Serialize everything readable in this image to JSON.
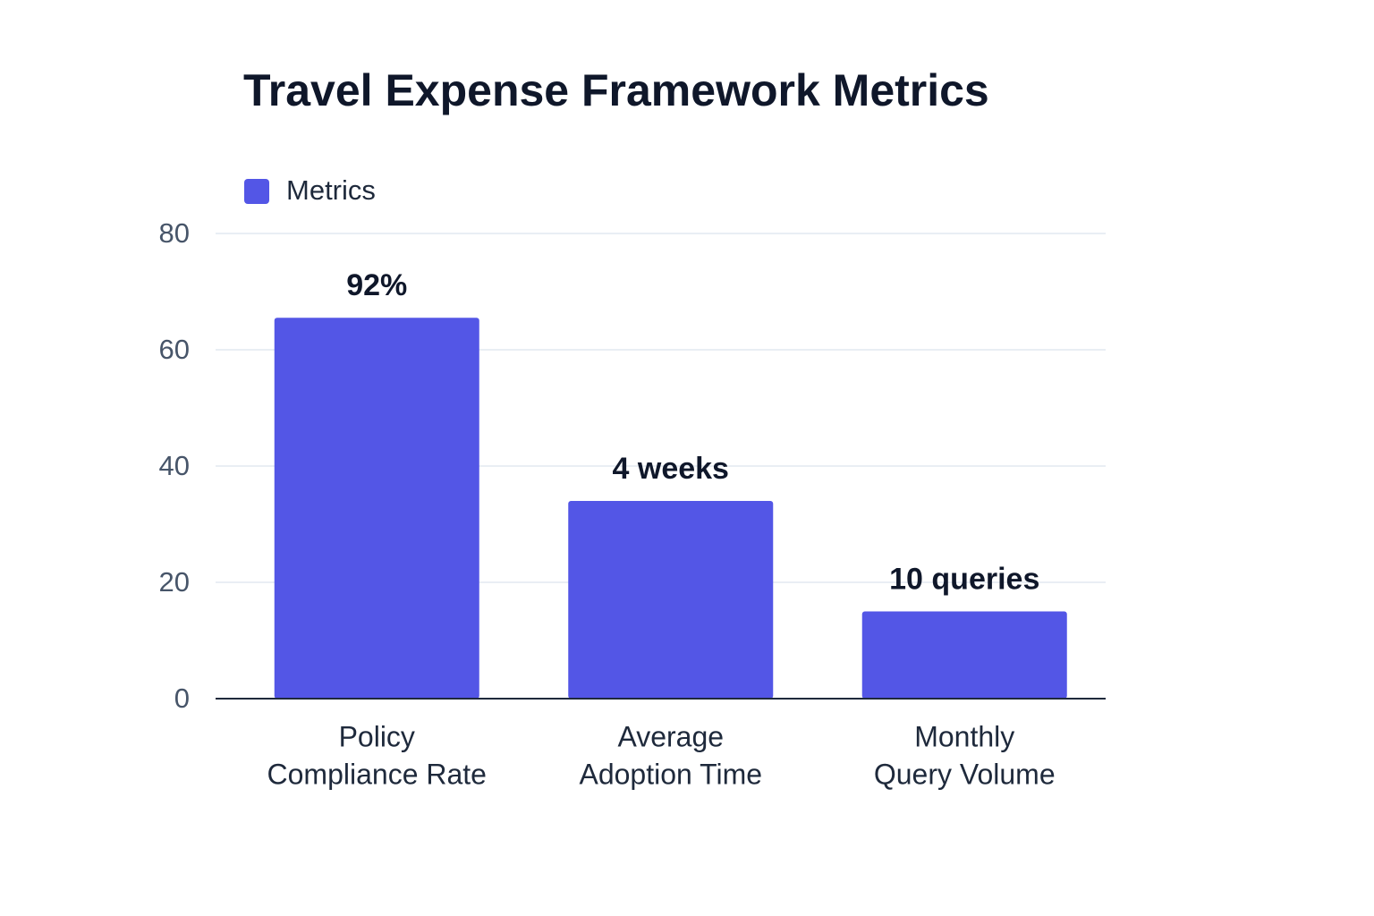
{
  "chart_data": {
    "type": "bar",
    "title": "Travel Expense Framework Metrics",
    "legend": "Metrics",
    "categories": [
      [
        "Policy",
        "Compliance Rate"
      ],
      [
        "Average",
        "Adoption Time"
      ],
      [
        "Monthly",
        "Query Volume"
      ]
    ],
    "values": [
      65.5,
      34,
      15
    ],
    "annotations": [
      "92%",
      "4 weeks",
      "10 queries"
    ],
    "color": "#5356e6",
    "ylim": [
      0,
      80
    ],
    "yticks": [
      0,
      20,
      40,
      60,
      80
    ],
    "grid": true
  }
}
